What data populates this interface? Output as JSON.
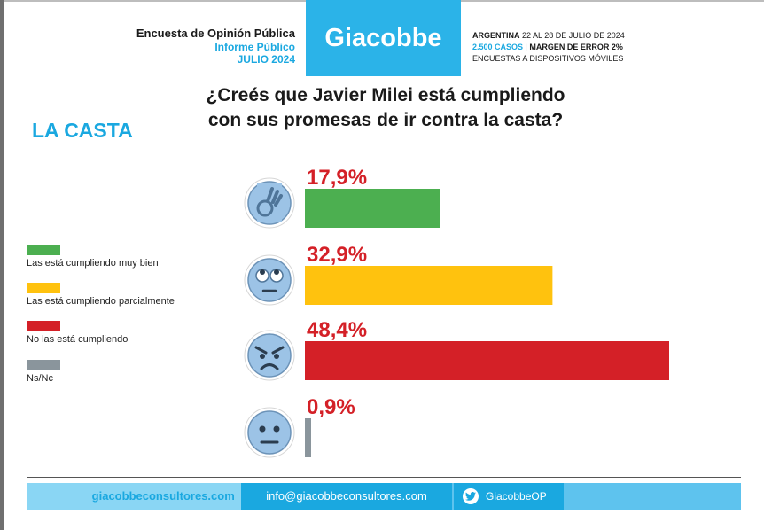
{
  "header": {
    "title": "Encuesta de Opinión Pública",
    "subtitle": "Informe Público",
    "date": "JULIO 2024",
    "brand": "Giacobbe",
    "country": "ARGENTINA",
    "field_dates": "22 AL 28 DE JULIO DE 2024",
    "cases": "2.500 CASOS",
    "separator": "|",
    "margin": "MARGEN DE ERROR 2%",
    "method": "ENCUESTAS A DISPOSITIVOS MÓVILES"
  },
  "section_title": "LA CASTA",
  "question": {
    "line1": "¿Creés que Javier Milei está cumpliendo",
    "line2": "con sus promesas de ir contra la casta?"
  },
  "legend": [
    {
      "label": "Las está cumpliendo muy bien",
      "color": "#4caf50"
    },
    {
      "label": "Las está cumpliendo parcialmente",
      "color": "#ffc20e"
    },
    {
      "label": "No las está cumpliendo",
      "color": "#d42027"
    },
    {
      "label": "Ns/Nc",
      "color": "#8a959c"
    }
  ],
  "chart_data": {
    "type": "bar",
    "orientation": "horizontal",
    "categories": [
      "Las está cumpliendo muy bien",
      "Las está cumpliendo parcialmente",
      "No las está cumpliendo",
      "Ns/Nc"
    ],
    "values": [
      17.9,
      32.9,
      48.4,
      0.9
    ],
    "value_labels": [
      "17,9%",
      "32,9%",
      "48,4%",
      "0,9%"
    ],
    "colors": [
      "#4caf50",
      "#ffc20e",
      "#d42027",
      "#8a959c"
    ],
    "icons": [
      "ok-hand-icon",
      "eye-roll-face-icon",
      "angry-face-icon",
      "neutral-face-icon"
    ],
    "label_color": "#d42027",
    "xlim": [
      0,
      48.4
    ],
    "grid": false,
    "legend_position": "left"
  },
  "footer": {
    "website": "giacobbeconsultores.com",
    "email": "info@giacobbeconsultores.com",
    "twitter": "GiacobbeOP"
  }
}
